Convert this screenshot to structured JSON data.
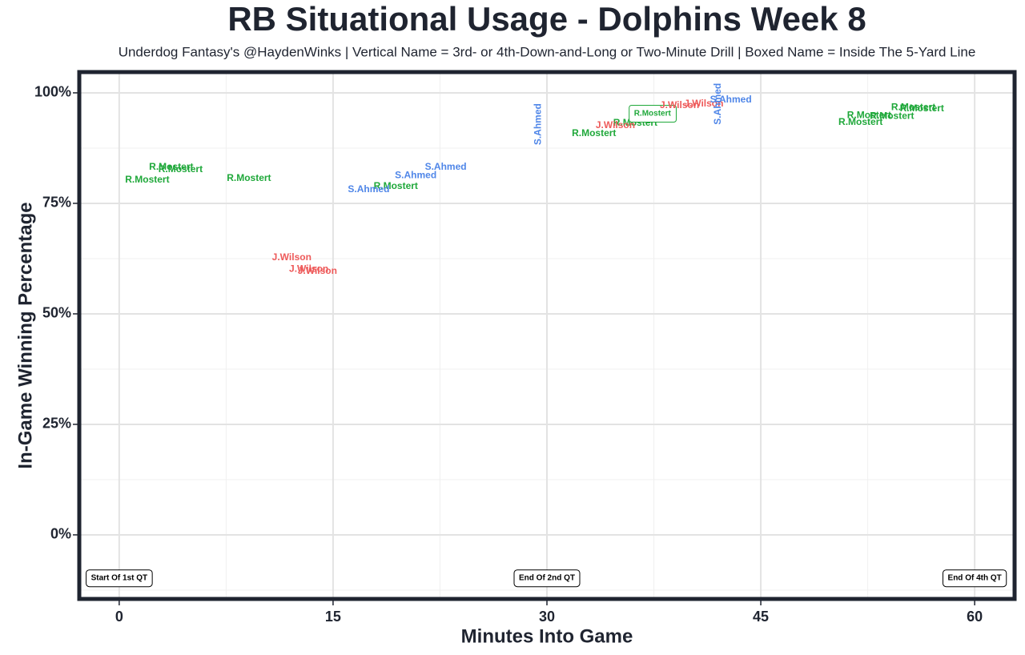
{
  "chart_data": {
    "type": "scatter",
    "title": "RB Situational Usage - Dolphins Week 8",
    "subtitle": "Underdog Fantasy's @HaydenWinks | Vertical Name = 3rd- or 4th-Down-and-Long or Two-Minute Drill | Boxed Name = Inside The 5-Yard Line",
    "x_label": "Minutes Into Game",
    "y_label": "In-Game Winning Percentage",
    "xlim": [
      -2.8,
      62.8
    ],
    "ylim": [
      -14.5,
      104.7
    ],
    "xticks": [
      0,
      15,
      30,
      45,
      60
    ],
    "xminorticks": [
      7.5,
      22.5,
      37.5,
      52.5
    ],
    "yticks": [
      {
        "value": 0,
        "label": "0%"
      },
      {
        "value": 25,
        "label": "25%"
      },
      {
        "value": 50,
        "label": "50%"
      },
      {
        "value": 75,
        "label": "75%"
      },
      {
        "value": 100,
        "label": "100%"
      }
    ],
    "yminorticks": [
      -12.5,
      12.5,
      37.5,
      62.5,
      87.5
    ],
    "grid": true,
    "series": [
      {
        "name": "R.Mostert",
        "color": "#1fa83a",
        "x": [
          3.65,
          4.3,
          1.97,
          9.1,
          19.4,
          33.3,
          36.2,
          37.4,
          55.7,
          56.3,
          52.6,
          54.2,
          52.0
        ],
        "values": [
          83.2,
          82.6,
          80.3,
          80.6,
          78.8,
          90.8,
          93.1,
          95.3,
          96.7,
          96.4,
          94.9,
          94.7,
          93.3
        ],
        "vertical": [
          false,
          false,
          false,
          false,
          false,
          false,
          false,
          false,
          false,
          false,
          false,
          false,
          false
        ],
        "boxed": [
          false,
          false,
          false,
          false,
          false,
          false,
          false,
          true,
          false,
          false,
          false,
          false,
          false
        ]
      },
      {
        "name": "J.Wilson",
        "color": "#ee5a5a",
        "x": [
          12.1,
          13.3,
          13.9,
          34.8,
          39.3,
          41.0
        ],
        "values": [
          62.7,
          60.1,
          59.6,
          92.6,
          97.1,
          97.5
        ],
        "vertical": [
          false,
          false,
          false,
          false,
          false,
          false
        ],
        "boxed": [
          false,
          false,
          false,
          false,
          false,
          false
        ]
      },
      {
        "name": "S.Ahmed",
        "color": "#4f86e8",
        "x": [
          17.5,
          20.8,
          22.9,
          29.4,
          42.0,
          42.9
        ],
        "values": [
          78.1,
          81.3,
          83.2,
          92.9,
          97.5,
          98.4
        ],
        "vertical": [
          false,
          false,
          false,
          true,
          true,
          false
        ],
        "boxed": [
          false,
          false,
          false,
          false,
          false,
          false
        ]
      }
    ],
    "annotations": [
      {
        "text": "Start Of 1st QT",
        "x": 0,
        "y": -9.8
      },
      {
        "text": "End Of 2nd QT",
        "x": 30,
        "y": -9.8
      },
      {
        "text": "End Of 4th QT",
        "x": 60,
        "y": -9.8
      }
    ]
  }
}
